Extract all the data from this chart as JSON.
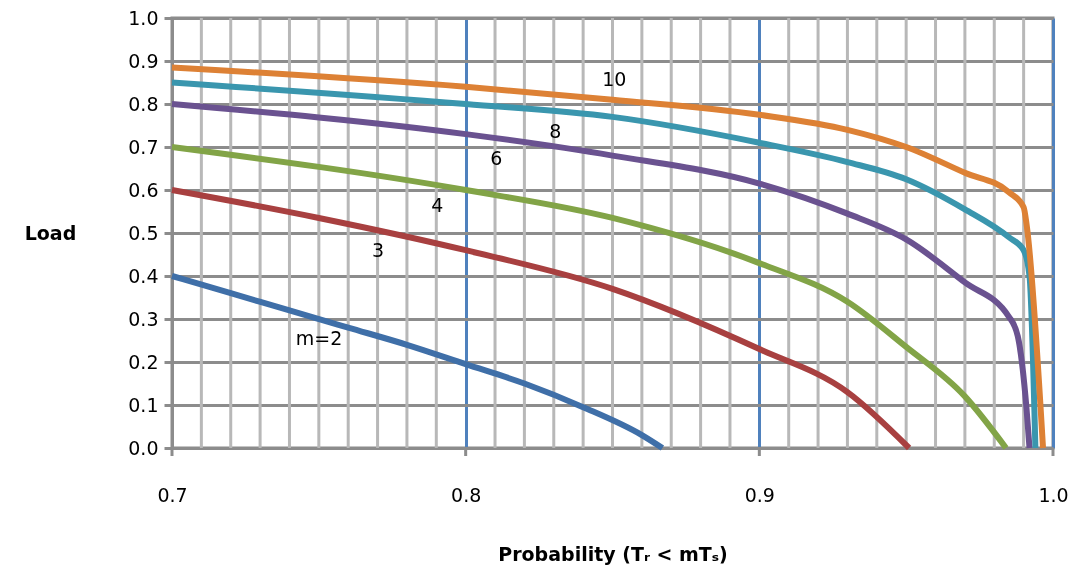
{
  "chart_data": {
    "type": "line",
    "xlabel": "Probability (Tᵣ < mTₛ)",
    "ylabel": "Load",
    "xlim": [
      0.7,
      1.0
    ],
    "ylim": [
      0,
      1.0
    ],
    "xticks": [
      0.7,
      {
        "value": 0.71,
        "label": null
      },
      {
        "value": 0.72,
        "label": null
      },
      {
        "value": 0.73,
        "label": null
      },
      {
        "value": 0.74,
        "label": null
      },
      {
        "value": 0.75,
        "label": null
      },
      {
        "value": 0.76,
        "label": null
      },
      {
        "value": 0.77,
        "label": null
      },
      {
        "value": 0.78,
        "label": null
      },
      {
        "value": 0.79,
        "label": null
      },
      0.8,
      {
        "value": 0.81,
        "label": null
      },
      {
        "value": 0.82,
        "label": null
      },
      {
        "value": 0.83,
        "label": null
      },
      {
        "value": 0.84,
        "label": null
      },
      {
        "value": 0.85,
        "label": null
      },
      {
        "value": 0.86,
        "label": null
      },
      {
        "value": 0.87,
        "label": null
      },
      {
        "value": 0.88,
        "label": null
      },
      {
        "value": 0.89,
        "label": null
      },
      0.9,
      {
        "value": 0.91,
        "label": null
      },
      {
        "value": 0.92,
        "label": null
      },
      {
        "value": 0.93,
        "label": null
      },
      {
        "value": 0.94,
        "label": null
      },
      {
        "value": 0.95,
        "label": null
      },
      {
        "value": 0.96,
        "label": null
      },
      {
        "value": 0.97,
        "label": null
      },
      {
        "value": 0.98,
        "label": null
      },
      {
        "value": 0.99,
        "label": null
      },
      {
        "value": 1.0,
        "label": "1.0"
      }
    ],
    "yticks": [
      {
        "value": 0,
        "label": "0.0"
      },
      0.1,
      0.2,
      0.3,
      0.4,
      0.5,
      0.6,
      0.7,
      0.8,
      0.9,
      {
        "value": 1.0,
        "label": "1.0"
      }
    ],
    "grid": true,
    "marker": "none",
    "line_style": "solid",
    "series": [
      {
        "name": "m=2",
        "color": "#3f6fa8",
        "x": [
          0.7,
          0.72,
          0.74,
          0.76,
          0.78,
          0.8,
          0.82,
          0.84,
          0.86,
          0.867
        ],
        "values": [
          0.4,
          0.36,
          0.32,
          0.28,
          0.24,
          0.195,
          0.15,
          0.095,
          0.03,
          0.0
        ]
      },
      {
        "name": "3",
        "color": "#a84040",
        "x": [
          0.7,
          0.75,
          0.8,
          0.85,
          0.9,
          0.93,
          0.951
        ],
        "values": [
          0.6,
          0.535,
          0.46,
          0.37,
          0.23,
          0.13,
          0.0
        ]
      },
      {
        "name": "4",
        "color": "#82a447",
        "x": [
          0.7,
          0.8,
          0.85,
          0.9,
          0.93,
          0.95,
          0.97,
          0.984
        ],
        "values": [
          0.7,
          0.6,
          0.535,
          0.43,
          0.34,
          0.235,
          0.12,
          0.0
        ]
      },
      {
        "name": "6",
        "color": "#6a5290",
        "x": [
          0.7,
          0.8,
          0.85,
          0.9,
          0.93,
          0.95,
          0.97,
          0.985,
          0.988,
          0.991,
          0.992
        ],
        "values": [
          0.8,
          0.73,
          0.68,
          0.615,
          0.545,
          0.485,
          0.385,
          0.305,
          0.26,
          0.09,
          0.0
        ]
      },
      {
        "name": "8",
        "color": "#3a96ae",
        "x": [
          0.7,
          0.8,
          0.85,
          0.9,
          0.93,
          0.95,
          0.97,
          0.985,
          0.99,
          0.992,
          0.994
        ],
        "values": [
          0.85,
          0.8,
          0.77,
          0.71,
          0.665,
          0.625,
          0.555,
          0.49,
          0.46,
          0.4,
          0.0
        ]
      },
      {
        "name": "10",
        "color": "#dd8135",
        "x": [
          0.7,
          0.8,
          0.85,
          0.9,
          0.93,
          0.95,
          0.97,
          0.985,
          0.99,
          0.991,
          0.9966
        ],
        "values": [
          0.885,
          0.84,
          0.81,
          0.775,
          0.74,
          0.7,
          0.64,
          0.595,
          0.56,
          0.52,
          0.0
        ]
      }
    ]
  }
}
